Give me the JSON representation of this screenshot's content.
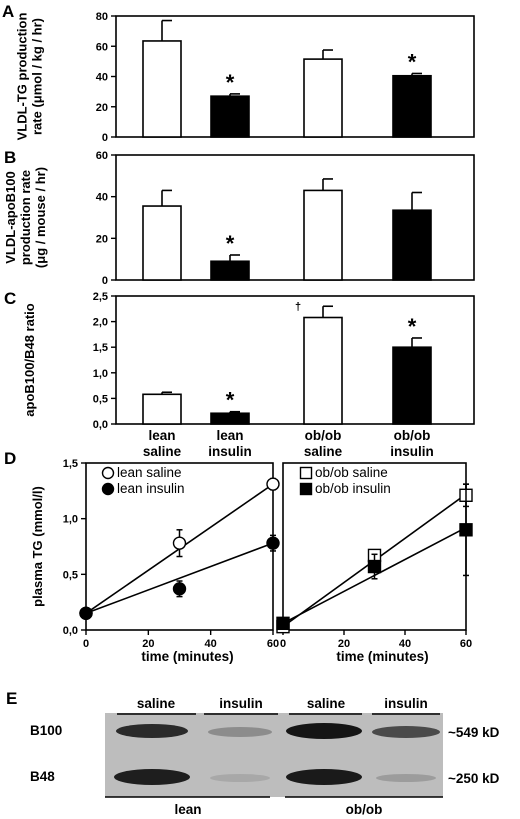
{
  "panel_labels": [
    "A",
    "B",
    "C",
    "D",
    "E"
  ],
  "chart_data": [
    {
      "panel": "A",
      "type": "bar",
      "categories": [
        "lean saline",
        "lean insulin",
        "ob/ob saline",
        "ob/ob insulin"
      ],
      "values": [
        63.5,
        27,
        51.5,
        40.5
      ],
      "errors": [
        13.5,
        1.5,
        6,
        1.5
      ],
      "fills": [
        "#ffffff",
        "#000000",
        "#ffffff",
        "#000000"
      ],
      "annotations": [
        "",
        "*",
        "",
        "*"
      ],
      "ylabel": "VLDL-TG production rate (μmol / kg / hr)",
      "ylabel_lines": [
        "VLDL-TG production",
        "rate (μmol / kg / hr)"
      ],
      "yticks": [
        "0",
        "20",
        "40",
        "60",
        "80"
      ],
      "ylim": [
        0,
        80
      ]
    },
    {
      "panel": "B",
      "type": "bar",
      "categories": [
        "lean saline",
        "lean insulin",
        "ob/ob saline",
        "ob/ob insulin"
      ],
      "values": [
        35.5,
        9,
        43,
        33.5
      ],
      "errors": [
        7.5,
        3,
        5.5,
        8.5
      ],
      "fills": [
        "#ffffff",
        "#000000",
        "#ffffff",
        "#000000"
      ],
      "annotations": [
        "",
        "*",
        "",
        ""
      ],
      "ylabel": "VLDL-apoB100 production rate (μg / mouse / hr)",
      "ylabel_lines": [
        "VLDL-apoB100",
        "production rate",
        "(μg / mouse / hr)"
      ],
      "yticks": [
        "0",
        "20",
        "40",
        "60"
      ],
      "ylim": [
        0,
        60
      ]
    },
    {
      "panel": "C",
      "type": "bar",
      "categories": [
        "lean saline",
        "lean insulin",
        "ob/ob saline",
        "ob/ob insulin"
      ],
      "category_lines": [
        [
          "lean",
          "saline"
        ],
        [
          "lean",
          "insulin"
        ],
        [
          "ob/ob",
          "saline"
        ],
        [
          "ob/ob",
          "insulin"
        ]
      ],
      "values": [
        0.58,
        0.21,
        2.08,
        1.5
      ],
      "errors": [
        0.04,
        0.03,
        0.22,
        0.18
      ],
      "fills": [
        "#ffffff",
        "#000000",
        "#ffffff",
        "#000000"
      ],
      "annotations": [
        "",
        "*",
        "†",
        "*"
      ],
      "ylabel": "apoB100/B48 ratio",
      "yticks": [
        "0,0",
        "0,5",
        "1,0",
        "1,5",
        "2,0",
        "2,5"
      ],
      "ylim": [
        0,
        2.5
      ]
    },
    {
      "panel": "D",
      "type": "line",
      "sub": "lean",
      "x": [
        0,
        30,
        60
      ],
      "xticks": [
        "0",
        "20",
        "40",
        "60"
      ],
      "xlim": [
        0,
        60
      ],
      "ylim": [
        0,
        1.5
      ],
      "yticks": [
        "0,0",
        "0,5",
        "1,0",
        "1,5"
      ],
      "xlabel": "time (minutes)",
      "ylabel": "plasma TG (mmol/l)",
      "series": [
        {
          "name": "lean saline",
          "marker": "circle-open",
          "values": [
            0.15,
            0.78,
            1.31
          ],
          "errors": [
            0,
            0.12,
            0.05
          ],
          "fit": [
            0.15,
            1.31
          ]
        },
        {
          "name": "lean insulin",
          "marker": "circle-filled",
          "values": [
            0.15,
            0.37,
            0.78
          ],
          "errors": [
            0,
            0.07,
            0.07
          ],
          "fit": [
            0.15,
            0.78
          ]
        }
      ]
    },
    {
      "panel": "D",
      "type": "line",
      "sub": "ob/ob",
      "x": [
        0,
        30,
        60
      ],
      "xticks": [
        "0",
        "20",
        "40",
        "60"
      ],
      "xlim": [
        0,
        60
      ],
      "ylim": [
        0,
        1.5
      ],
      "xlabel": "time (minutes)",
      "series": [
        {
          "name": "ob/ob saline",
          "marker": "square-open",
          "values": [
            0.03,
            0.67,
            1.21
          ],
          "errors": [
            0,
            0.05,
            0.1
          ],
          "fit": [
            0.03,
            1.22
          ]
        },
        {
          "name": "ob/ob insulin",
          "marker": "square-filled",
          "values": [
            0.06,
            0.57,
            0.9
          ],
          "errors": [
            0,
            0.11,
            0.41
          ],
          "fit": [
            0.06,
            0.92
          ]
        }
      ]
    }
  ],
  "blot": {
    "panel": "E",
    "lanes": [
      "saline",
      "insulin",
      "saline",
      "insulin"
    ],
    "bands": [
      "B100",
      "B48"
    ],
    "sizes": [
      "~549 kD",
      "~250 kD"
    ],
    "groups": [
      "lean",
      "ob/ob"
    ]
  }
}
